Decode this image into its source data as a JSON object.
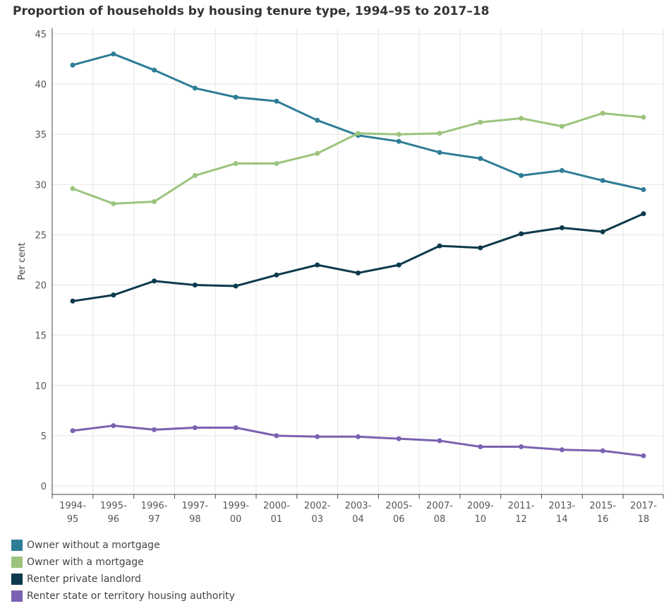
{
  "chart_data": {
    "type": "line",
    "title": "Proportion of households by housing tenure type, 1994–95 to 2017–18",
    "ylabel": "Per cent",
    "xlabel": "",
    "ylim": [
      0,
      45
    ],
    "yticks": [
      0,
      5,
      10,
      15,
      20,
      25,
      30,
      35,
      40,
      45
    ],
    "grid": true,
    "legend_position": "bottom-left",
    "categories": [
      [
        "1994-",
        "95"
      ],
      [
        "1995-",
        "96"
      ],
      [
        "1996-",
        "97"
      ],
      [
        "1997-",
        "98"
      ],
      [
        "1999-",
        "00"
      ],
      [
        "2000-",
        "01"
      ],
      [
        "2002-",
        "03"
      ],
      [
        "2003-",
        "04"
      ],
      [
        "2005-",
        "06"
      ],
      [
        "2007-",
        "08"
      ],
      [
        "2009-",
        "10"
      ],
      [
        "2011-",
        "12"
      ],
      [
        "2013-",
        "14"
      ],
      [
        "2015-",
        "16"
      ],
      [
        "2017-",
        "18"
      ]
    ],
    "series": [
      {
        "name": "Owner without a mortgage",
        "color": "#2e7d96",
        "values": [
          41.9,
          43.0,
          41.4,
          39.6,
          38.7,
          38.3,
          36.4,
          34.9,
          34.3,
          33.2,
          32.6,
          30.9,
          31.4,
          30.4,
          29.5
        ]
      },
      {
        "name": "Owner with a mortgage",
        "color": "#9cc47e",
        "values": [
          29.6,
          28.1,
          28.3,
          30.9,
          32.1,
          32.1,
          33.1,
          35.1,
          35.0,
          35.1,
          36.2,
          36.6,
          35.8,
          37.1,
          36.7
        ]
      },
      {
        "name": "Renter private landlord",
        "color": "#0d3a4d",
        "values": [
          18.4,
          19.0,
          20.4,
          20.0,
          19.9,
          21.0,
          22.0,
          21.2,
          22.0,
          23.9,
          23.7,
          25.1,
          25.7,
          25.3,
          27.1
        ]
      },
      {
        "name": "Renter state or territory housing authority",
        "color": "#7b62b0",
        "values": [
          5.5,
          6.0,
          5.6,
          5.8,
          5.8,
          5.0,
          4.9,
          4.9,
          4.7,
          4.5,
          3.9,
          3.9,
          3.6,
          3.5,
          3.0
        ]
      }
    ]
  }
}
